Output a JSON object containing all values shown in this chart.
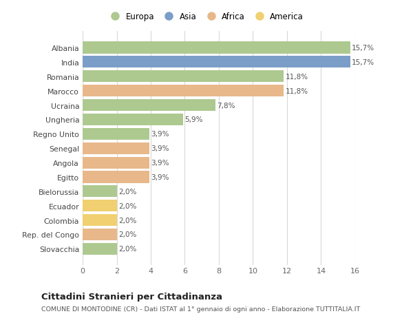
{
  "countries": [
    "Albania",
    "India",
    "Romania",
    "Marocco",
    "Ucraina",
    "Ungheria",
    "Regno Unito",
    "Senegal",
    "Angola",
    "Egitto",
    "Bielorussia",
    "Ecuador",
    "Colombia",
    "Rep. del Congo",
    "Slovacchia"
  ],
  "values": [
    15.7,
    15.7,
    11.8,
    11.8,
    7.8,
    5.9,
    3.9,
    3.9,
    3.9,
    3.9,
    2.0,
    2.0,
    2.0,
    2.0,
    2.0
  ],
  "labels": [
    "15,7%",
    "15,7%",
    "11,8%",
    "11,8%",
    "7,8%",
    "5,9%",
    "3,9%",
    "3,9%",
    "3,9%",
    "3,9%",
    "2,0%",
    "2,0%",
    "2,0%",
    "2,0%",
    "2,0%"
  ],
  "continents": [
    "Europa",
    "Asia",
    "Europa",
    "Africa",
    "Europa",
    "Europa",
    "Europa",
    "Africa",
    "Africa",
    "Africa",
    "Europa",
    "America",
    "America",
    "Africa",
    "Europa"
  ],
  "continent_colors": {
    "Europa": "#adc990",
    "Asia": "#7b9ec8",
    "Africa": "#e8b88a",
    "America": "#f0d070"
  },
  "legend_order": [
    "Europa",
    "Asia",
    "Africa",
    "America"
  ],
  "title": "Cittadini Stranieri per Cittadinanza",
  "subtitle": "COMUNE DI MONTODINE (CR) - Dati ISTAT al 1° gennaio di ogni anno - Elaborazione TUTTITALIA.IT",
  "xlim": [
    0,
    16
  ],
  "xticks": [
    0,
    2,
    4,
    6,
    8,
    10,
    12,
    14,
    16
  ],
  "bg_color": "#ffffff",
  "grid_color": "#d8d8d8"
}
